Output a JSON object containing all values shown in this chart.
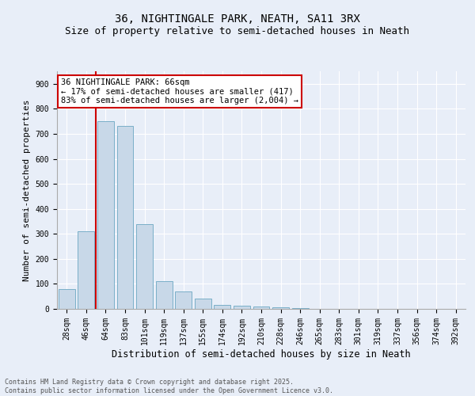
{
  "title1": "36, NIGHTINGALE PARK, NEATH, SA11 3RX",
  "title2": "Size of property relative to semi-detached houses in Neath",
  "xlabel": "Distribution of semi-detached houses by size in Neath",
  "ylabel": "Number of semi-detached properties",
  "categories": [
    "28sqm",
    "46sqm",
    "64sqm",
    "83sqm",
    "101sqm",
    "119sqm",
    "137sqm",
    "155sqm",
    "174sqm",
    "192sqm",
    "210sqm",
    "228sqm",
    "246sqm",
    "265sqm",
    "283sqm",
    "301sqm",
    "319sqm",
    "337sqm",
    "356sqm",
    "374sqm",
    "392sqm"
  ],
  "values": [
    80,
    310,
    750,
    730,
    340,
    110,
    70,
    40,
    15,
    12,
    10,
    6,
    2,
    0,
    0,
    0,
    0,
    0,
    0,
    0,
    0
  ],
  "bar_color": "#c8d8e8",
  "bar_edge_color": "#7aafc8",
  "annotation_text": "36 NIGHTINGALE PARK: 66sqm\n← 17% of semi-detached houses are smaller (417)\n83% of semi-detached houses are larger (2,004) →",
  "annotation_box_color": "#ffffff",
  "annotation_box_edge_color": "#cc0000",
  "vline_color": "#cc0000",
  "vline_x": 1.5,
  "ylim": [
    0,
    950
  ],
  "yticks": [
    0,
    100,
    200,
    300,
    400,
    500,
    600,
    700,
    800,
    900
  ],
  "background_color": "#e8eef8",
  "plot_background_color": "#e8eef8",
  "footer": "Contains HM Land Registry data © Crown copyright and database right 2025.\nContains public sector information licensed under the Open Government Licence v3.0.",
  "title1_fontsize": 10,
  "title2_fontsize": 9,
  "xlabel_fontsize": 8.5,
  "ylabel_fontsize": 8,
  "tick_fontsize": 7,
  "annotation_fontsize": 7.5,
  "footer_fontsize": 6
}
